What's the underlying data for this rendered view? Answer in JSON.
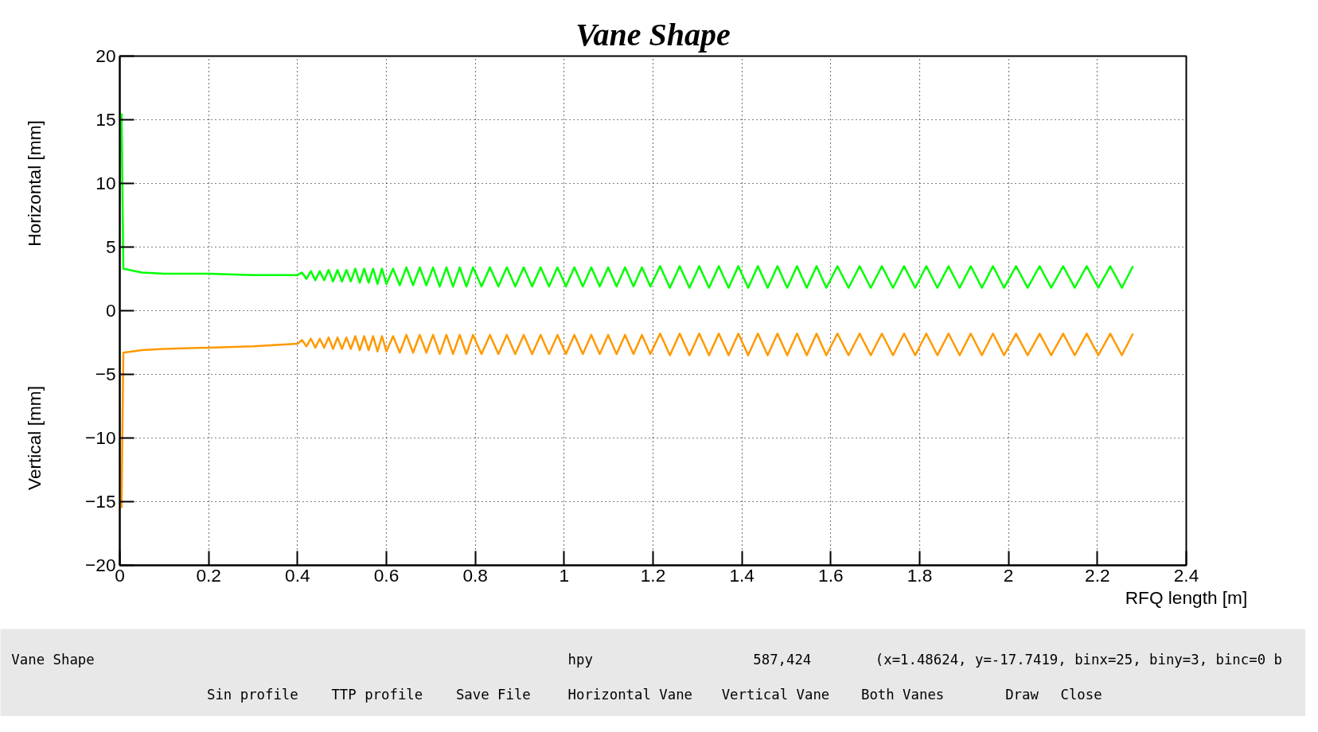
{
  "chart_data": {
    "type": "line",
    "title": "Vane Shape",
    "xlabel": "RFQ length [m]",
    "ylabel": "Horizontal [mm]",
    "xlim": [
      0,
      2.4
    ],
    "ylim": [
      -20,
      20
    ],
    "xticks": [
      0,
      0.2,
      0.4,
      0.6,
      0.8,
      1,
      1.2,
      1.4,
      1.6,
      1.8,
      2,
      2.2,
      2.4
    ],
    "yticks": [
      -20,
      -15,
      -10,
      -5,
      0,
      5,
      10,
      15,
      20
    ],
    "grid": true,
    "line_style": "solid",
    "annotations": [
      "Vertical [mm]",
      "Vane Shape",
      "hpy",
      "587,424",
      "(x=1.48624, y=-17.7419, binx=25, biny=3, binc=0 b",
      "Sin profile",
      "TTP profile",
      "Save File",
      "Horizontal Vane",
      "Vertical Vane",
      "Both Vanes",
      "Draw",
      "Close"
    ],
    "series": [
      {
        "color": "#00ff00",
        "x": [
          0.004,
          0.008,
          0.05,
          0.1,
          0.2,
          0.3,
          0.4,
          0.41,
          0.42,
          0.43,
          0.44,
          0.45,
          0.46,
          0.47,
          0.48,
          0.49,
          0.5,
          0.51,
          0.52,
          0.53,
          0.54,
          0.55,
          0.56,
          0.57,
          0.58,
          0.59,
          0.6,
          0.615,
          0.63,
          0.645,
          0.66,
          0.675,
          0.69,
          0.705,
          0.72,
          0.735,
          0.75,
          0.765,
          0.78,
          0.795,
          0.814,
          0.833,
          0.852,
          0.871,
          0.89,
          0.909,
          0.928,
          0.947,
          0.966,
          0.985,
          1.004,
          1.023,
          1.042,
          1.061,
          1.08,
          1.099,
          1.118,
          1.137,
          1.156,
          1.175,
          1.194,
          1.216,
          1.238,
          1.26,
          1.282,
          1.304,
          1.326,
          1.348,
          1.37,
          1.392,
          1.414,
          1.436,
          1.458,
          1.48,
          1.502,
          1.524,
          1.546,
          1.568,
          1.59,
          1.615,
          1.64,
          1.665,
          1.69,
          1.715,
          1.74,
          1.765,
          1.79,
          1.815,
          1.84,
          1.865,
          1.89,
          1.915,
          1.94,
          1.965,
          1.99,
          2.017,
          2.043,
          2.07,
          2.096,
          2.123,
          2.149,
          2.176,
          2.202,
          2.229,
          2.255,
          2.28
        ],
        "values": [
          15.5,
          3.3,
          3.0,
          2.9,
          2.9,
          2.8,
          2.8,
          3.0,
          2.5,
          3.1,
          2.4,
          3.1,
          2.4,
          3.2,
          2.3,
          3.2,
          2.3,
          3.2,
          2.3,
          3.3,
          2.2,
          3.3,
          2.2,
          3.3,
          2.1,
          3.3,
          2.1,
          3.3,
          2.0,
          3.4,
          2.0,
          3.4,
          2.0,
          3.4,
          1.9,
          3.4,
          1.9,
          3.4,
          1.9,
          3.4,
          1.9,
          3.4,
          1.9,
          3.4,
          1.9,
          3.4,
          1.9,
          3.4,
          1.9,
          3.4,
          1.9,
          3.4,
          1.9,
          3.4,
          1.9,
          3.4,
          1.9,
          3.4,
          1.9,
          3.4,
          1.9,
          3.5,
          1.8,
          3.5,
          1.8,
          3.5,
          1.8,
          3.5,
          1.8,
          3.5,
          1.8,
          3.5,
          1.8,
          3.5,
          1.8,
          3.5,
          1.8,
          3.5,
          1.8,
          3.5,
          1.8,
          3.5,
          1.8,
          3.5,
          1.8,
          3.5,
          1.8,
          3.5,
          1.8,
          3.5,
          1.8,
          3.5,
          1.8,
          3.5,
          1.8,
          3.5,
          1.8,
          3.5,
          1.8,
          3.5,
          1.8,
          3.5,
          1.8,
          3.5,
          1.8,
          3.5
        ]
      },
      {
        "color": "#ff9900",
        "x": [
          0.004,
          0.008,
          0.05,
          0.1,
          0.2,
          0.3,
          0.4,
          0.41,
          0.42,
          0.43,
          0.44,
          0.45,
          0.46,
          0.47,
          0.48,
          0.49,
          0.5,
          0.51,
          0.52,
          0.53,
          0.54,
          0.55,
          0.56,
          0.57,
          0.58,
          0.59,
          0.6,
          0.615,
          0.63,
          0.645,
          0.66,
          0.675,
          0.69,
          0.705,
          0.72,
          0.735,
          0.75,
          0.765,
          0.78,
          0.795,
          0.814,
          0.833,
          0.852,
          0.871,
          0.89,
          0.909,
          0.928,
          0.947,
          0.966,
          0.985,
          1.004,
          1.023,
          1.042,
          1.061,
          1.08,
          1.099,
          1.118,
          1.137,
          1.156,
          1.175,
          1.194,
          1.216,
          1.238,
          1.26,
          1.282,
          1.304,
          1.326,
          1.348,
          1.37,
          1.392,
          1.414,
          1.436,
          1.458,
          1.48,
          1.502,
          1.524,
          1.546,
          1.568,
          1.59,
          1.615,
          1.64,
          1.665,
          1.69,
          1.715,
          1.74,
          1.765,
          1.79,
          1.815,
          1.84,
          1.865,
          1.89,
          1.915,
          1.94,
          1.965,
          1.99,
          2.017,
          2.043,
          2.07,
          2.096,
          2.123,
          2.149,
          2.176,
          2.202,
          2.229,
          2.255,
          2.28
        ],
        "values": [
          -15.5,
          -3.3,
          -3.1,
          -3.0,
          -2.9,
          -2.8,
          -2.6,
          -2.3,
          -2.8,
          -2.2,
          -2.9,
          -2.2,
          -2.9,
          -2.1,
          -3.0,
          -2.1,
          -3.0,
          -2.1,
          -3.0,
          -2.0,
          -3.1,
          -2.0,
          -3.1,
          -2.0,
          -3.2,
          -2.0,
          -3.2,
          -2.0,
          -3.3,
          -1.9,
          -3.3,
          -1.9,
          -3.3,
          -1.9,
          -3.4,
          -1.9,
          -3.4,
          -1.9,
          -3.4,
          -1.9,
          -3.4,
          -1.9,
          -3.4,
          -1.9,
          -3.4,
          -1.9,
          -3.4,
          -1.9,
          -3.4,
          -1.9,
          -3.4,
          -1.9,
          -3.4,
          -1.9,
          -3.4,
          -1.9,
          -3.4,
          -1.9,
          -3.4,
          -1.9,
          -3.4,
          -1.8,
          -3.5,
          -1.8,
          -3.5,
          -1.8,
          -3.5,
          -1.8,
          -3.5,
          -1.8,
          -3.5,
          -1.8,
          -3.5,
          -1.8,
          -3.5,
          -1.8,
          -3.5,
          -1.8,
          -3.5,
          -1.8,
          -3.5,
          -1.8,
          -3.5,
          -1.8,
          -3.5,
          -1.8,
          -3.5,
          -1.8,
          -3.5,
          -1.8,
          -3.5,
          -1.8,
          -3.5,
          -1.8,
          -3.5,
          -1.8,
          -3.5,
          -1.8,
          -3.5,
          -1.8,
          -3.5,
          -1.8,
          -3.5,
          -1.8,
          -3.5,
          -1.8
        ]
      }
    ]
  }
}
